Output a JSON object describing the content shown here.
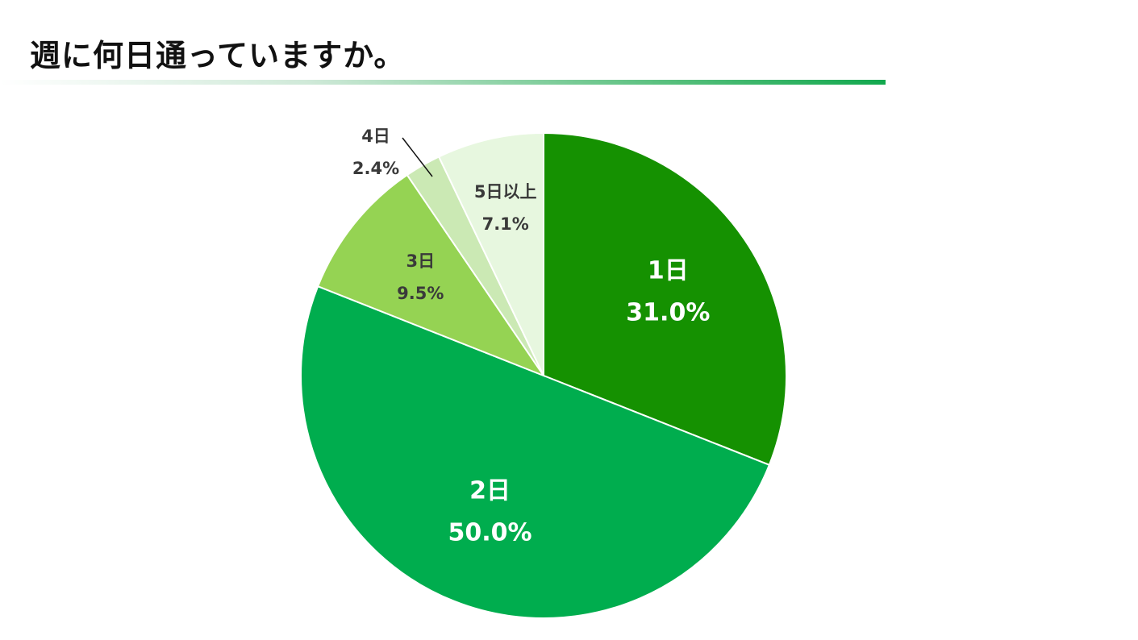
{
  "chart_data": {
    "type": "pie",
    "title": "週に何日通っていますか。",
    "start_angle": "12 o'clock",
    "direction": "clockwise",
    "slices": [
      {
        "label": "1日",
        "value": 31.0,
        "value_label": "31.0%",
        "color": "#159101",
        "label_color": "#ffffff"
      },
      {
        "label": "2日",
        "value": 50.0,
        "value_label": "50.0%",
        "color": "#00ad4e",
        "label_color": "#ffffff"
      },
      {
        "label": "3日",
        "value": 9.5,
        "value_label": "9.5%",
        "color": "#95d353",
        "label_color": "#3a3a3a"
      },
      {
        "label": "4日",
        "value": 2.4,
        "value_label": "2.4%",
        "color": "#cbe9b4",
        "label_color": "#3a3a3a"
      },
      {
        "label": "5日以上",
        "value": 7.1,
        "value_label": "7.1%",
        "color": "#e7f7df",
        "label_color": "#3a3a3a"
      }
    ]
  }
}
